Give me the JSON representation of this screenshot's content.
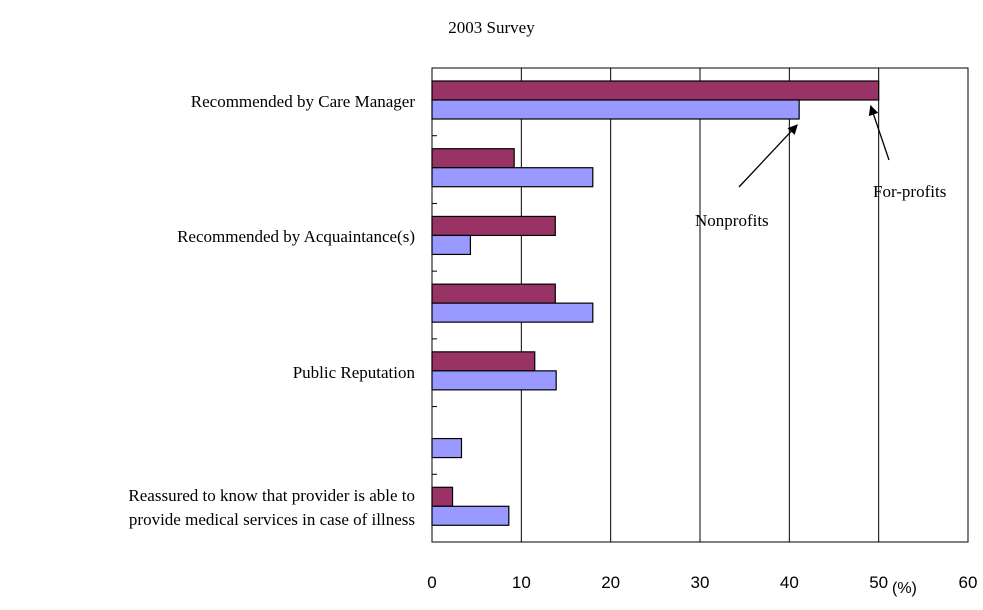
{
  "chart_data": {
    "type": "bar",
    "orientation": "horizontal",
    "title": "2003 Survey",
    "categories": [
      "Recommended by Care Manager",
      "",
      "Recommended by Acquaintance(s)",
      "",
      "Public Reputation",
      "",
      "Reassured to know that provider is able to provide medical services in case of illness"
    ],
    "category_label_lines": [
      [
        "Recommended by Care Manager"
      ],
      [],
      [
        "Recommended by Acquaintance(s)"
      ],
      [],
      [
        "Public Reputation"
      ],
      [],
      [
        "Reassured to know that provider is able to",
        "provide medical services in case of illness"
      ]
    ],
    "series": [
      {
        "name": "For-profits",
        "color": "#993366",
        "values": [
          50,
          9.2,
          13.8,
          13.8,
          11.5,
          0,
          2.3
        ]
      },
      {
        "name": "Nonprofits",
        "color": "#9999ff",
        "values": [
          41.1,
          18,
          4.3,
          18,
          13.9,
          3.3,
          8.6
        ]
      }
    ],
    "xlim": [
      0,
      60
    ],
    "xticks": [
      0,
      10,
      20,
      30,
      40,
      50,
      60
    ],
    "xunit": "(%)",
    "grid": "vertical",
    "annotations": [
      {
        "text": "For-profits",
        "points_to": "For-profits bar of Recommended by Care Manager"
      },
      {
        "text": "Nonprofits",
        "points_to": "Nonprofits bar of Recommended by Care Manager"
      }
    ]
  }
}
